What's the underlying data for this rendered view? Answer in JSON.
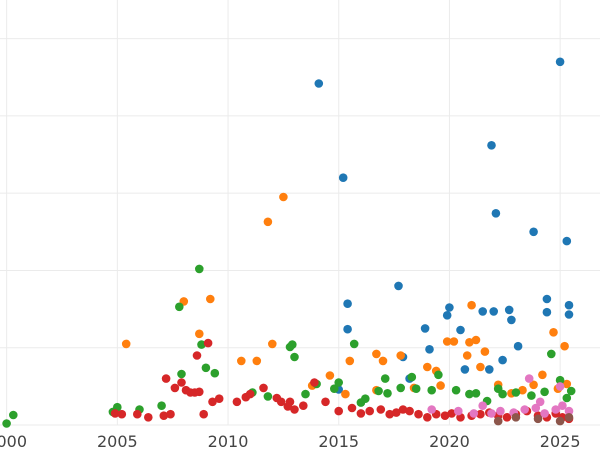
{
  "chart_data": {
    "type": "scatter",
    "title": "",
    "xlabel": "",
    "ylabel": "",
    "xlim": [
      1999.7,
      2026.8
    ],
    "ylim": [
      0,
      550
    ],
    "x_ticks": [
      2000,
      2005,
      2010,
      2015,
      2020,
      2025
    ],
    "x_tick_labels": [
      "2000",
      "2005",
      "2010",
      "2015",
      "2020",
      "2025"
    ],
    "y_ticks": [
      0,
      100,
      200,
      300,
      400,
      500
    ],
    "grid": true,
    "colors": {
      "blue": "#1f77b4",
      "orange": "#ff7f0e",
      "green": "#2ca02c",
      "red": "#d62728",
      "violet": "#e377c2",
      "brown": "#8c564b"
    },
    "series": [
      {
        "color": "blue",
        "x": [
          2014.1,
          2015.2,
          2015.4,
          2015.4,
          2015.0,
          2017.7,
          2017.9,
          2018.9,
          2019.1,
          2019.9,
          2020.0,
          2020.5,
          2020.7,
          2021.5,
          2021.8,
          2021.9,
          2022.0,
          2022.1,
          2022.4,
          2022.7,
          2022.8,
          2023.1,
          2023.8,
          2024.4,
          2024.4,
          2025.0,
          2025.3,
          2025.4,
          2025.4,
          2018.2
        ],
        "y": [
          442,
          320,
          157,
          124,
          46,
          180,
          88,
          125,
          98,
          142,
          152,
          123,
          72,
          147,
          72,
          362,
          147,
          274,
          84,
          149,
          136,
          102,
          250,
          163,
          146,
          470,
          238,
          143,
          155,
          60
        ]
      },
      {
        "color": "orange",
        "x": [
          2005.4,
          2008.0,
          2008.7,
          2009.2,
          2010.6,
          2011.3,
          2011.8,
          2012.0,
          2012.5,
          2013.8,
          2014.6,
          2015.5,
          2015.3,
          2016.7,
          2017.0,
          2017.8,
          2018.4,
          2019.4,
          2019.6,
          2019.9,
          2020.2,
          2020.8,
          2020.9,
          2021.0,
          2021.2,
          2021.4,
          2021.6,
          2022.2,
          2022.8,
          2023.3,
          2023.8,
          2024.2,
          2024.7,
          2024.9,
          2025.2,
          2025.3,
          2016.7,
          2019.0
        ],
        "y": [
          105,
          160,
          118,
          163,
          83,
          83,
          263,
          105,
          295,
          51,
          64,
          83,
          40,
          92,
          83,
          90,
          48,
          70,
          51,
          108,
          108,
          90,
          107,
          155,
          110,
          75,
          95,
          52,
          41,
          45,
          52,
          65,
          120,
          47,
          102,
          53,
          45,
          75
        ]
      },
      {
        "color": "green",
        "x": [
          2000.0,
          2000.3,
          2005.0,
          2004.8,
          2006.0,
          2007.0,
          2007.8,
          2008.7,
          2008.8,
          2009.4,
          2011.1,
          2011.8,
          2012.8,
          2012.9,
          2013.0,
          2013.5,
          2014.0,
          2014.8,
          2015.0,
          2015.7,
          2016.0,
          2016.2,
          2016.8,
          2017.1,
          2017.2,
          2017.8,
          2018.3,
          2018.5,
          2019.2,
          2019.5,
          2020.3,
          2020.9,
          2021.2,
          2021.7,
          2022.2,
          2022.4,
          2023.0,
          2023.7,
          2024.3,
          2024.6,
          2025.0,
          2025.3,
          2025.5,
          2007.9,
          2009.0
        ],
        "y": [
          2,
          13,
          23,
          17,
          20,
          25,
          153,
          202,
          104,
          67,
          42,
          37,
          101,
          104,
          88,
          40,
          53,
          47,
          55,
          105,
          29,
          34,
          44,
          60,
          41,
          48,
          62,
          47,
          45,
          65,
          45,
          40,
          41,
          31,
          47,
          40,
          42,
          38,
          43,
          92,
          58,
          35,
          44,
          66,
          74
        ]
      },
      {
        "color": "red",
        "x": [
          2004.9,
          2005.2,
          2005.9,
          2006.4,
          2007.1,
          2007.4,
          2007.6,
          2007.9,
          2008.1,
          2008.3,
          2008.5,
          2008.7,
          2008.9,
          2009.3,
          2009.6,
          2010.4,
          2010.8,
          2011.0,
          2011.6,
          2012.2,
          2012.4,
          2012.8,
          2013.0,
          2013.4,
          2013.9,
          2014.4,
          2015.0,
          2015.6,
          2016.0,
          2016.4,
          2016.9,
          2017.3,
          2017.6,
          2017.9,
          2018.2,
          2018.6,
          2019.0,
          2019.4,
          2019.8,
          2020.1,
          2020.5,
          2021.0,
          2021.4,
          2021.8,
          2022.2,
          2022.6,
          2023.0,
          2023.5,
          2024.0,
          2024.4,
          2024.8,
          2025.1,
          2025.4,
          2007.2,
          2012.7,
          2008.6,
          2009.1
        ],
        "y": [
          15,
          14,
          14,
          10,
          12,
          14,
          48,
          55,
          45,
          42,
          42,
          43,
          14,
          30,
          34,
          30,
          36,
          40,
          48,
          35,
          30,
          30,
          20,
          25,
          55,
          30,
          18,
          22,
          15,
          18,
          20,
          14,
          16,
          20,
          18,
          14,
          10,
          14,
          12,
          15,
          10,
          12,
          14,
          16,
          12,
          10,
          14,
          18,
          12,
          10,
          15,
          10,
          8,
          60,
          24,
          90,
          106
        ]
      },
      {
        "color": "violet",
        "x": [
          2019.2,
          2020.4,
          2021.1,
          2021.5,
          2021.9,
          2022.3,
          2022.9,
          2023.4,
          2023.9,
          2024.3,
          2024.8,
          2025.1,
          2025.4,
          2023.6,
          2024.1,
          2025.0
        ],
        "y": [
          20,
          18,
          15,
          25,
          15,
          18,
          16,
          20,
          22,
          15,
          20,
          25,
          18,
          60,
          30,
          50
        ]
      },
      {
        "color": "brown",
        "x": [
          2022.2,
          2023.0,
          2024.0,
          2025.0,
          2025.4
        ],
        "y": [
          5,
          10,
          8,
          5,
          10
        ]
      }
    ]
  }
}
